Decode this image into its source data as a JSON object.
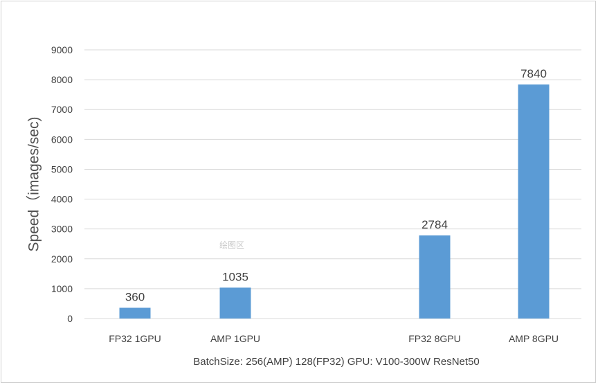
{
  "chart_data": {
    "type": "bar",
    "categories": [
      "FP32 1GPU",
      "AMP 1GPU",
      "FP32 8GPU",
      "AMP 8GPU"
    ],
    "values": [
      360,
      1035,
      2784,
      7840
    ],
    "data_labels": [
      "360",
      "1035",
      "2784",
      "7840"
    ],
    "bar_color": "#5B9BD5",
    "gridline_color": "#D9D9D9",
    "ylabel": "Speed（images/sec)",
    "xlabel": "BatchSize: 256(AMP) 128(FP32) GPU: V100-300W ResNet50",
    "ylim": [
      0,
      9000
    ],
    "yticks": [
      "0",
      "1000",
      "2000",
      "3000",
      "4000",
      "5000",
      "6000",
      "7000",
      "8000",
      "9000"
    ],
    "grid": true,
    "legend": "none"
  },
  "watermark_text": "绘图区"
}
